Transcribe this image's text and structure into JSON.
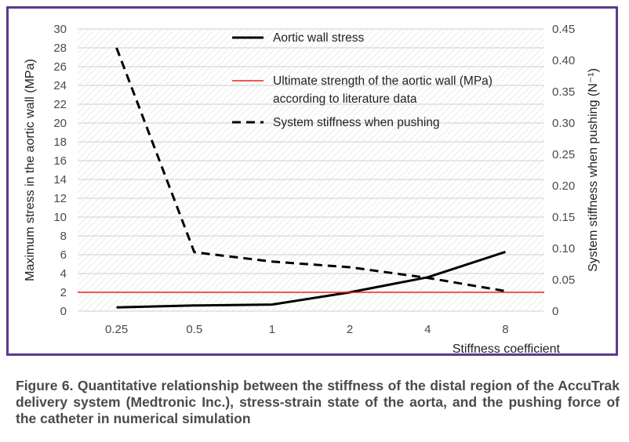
{
  "chart_data": {
    "type": "line",
    "categories": [
      "0.25",
      "0.5",
      "1",
      "2",
      "4",
      "8"
    ],
    "xlabel": "Stiffness coefficient",
    "ylabel": "Maximum stress in the aortic wall (MPa)",
    "y2label": "System stiffness when pushing (N⁻¹)",
    "ylim": [
      0,
      30
    ],
    "y2lim": [
      0,
      0.45
    ],
    "yticks": [
      "0",
      "2",
      "4",
      "6",
      "8",
      "10",
      "12",
      "14",
      "16",
      "18",
      "20",
      "22",
      "24",
      "26",
      "28",
      "30"
    ],
    "y2ticks": [
      "0",
      "0.05",
      "0.10",
      "0.15",
      "0.20",
      "0.25",
      "0.30",
      "0.35",
      "0.40",
      "0.45"
    ],
    "grid": "horizontal",
    "legend_position": "top-center",
    "series": [
      {
        "name": "Aortic wall stress",
        "axis": "left",
        "style": "solid",
        "color": "#000000",
        "values": [
          0.4,
          0.6,
          0.7,
          2.0,
          3.6,
          6.3
        ]
      },
      {
        "name": "Ultimate strength of the aortic wall (MPa) according to literature data",
        "axis": "left",
        "style": "solid",
        "color": "#e8231f",
        "values": [
          2,
          2,
          2,
          2,
          2,
          2
        ]
      },
      {
        "name": "System stiffness when pushing",
        "axis": "right",
        "style": "dashed",
        "color": "#000000",
        "values": [
          0.42,
          0.094,
          0.079,
          0.07,
          0.053,
          0.032
        ]
      }
    ],
    "legend_lines": [
      [
        "Aortic wall stress"
      ],
      [
        "Ultimate strength of the aortic wall (MPa)",
        "according to literature data"
      ],
      [
        "System stiffness when pushing"
      ]
    ]
  },
  "caption": "Figure 6. Quantitative relationship between the stiffness of the distal region of the AccuTrak delivery system (Medtronic Inc.), stress-strain state of the aorta, and the pushing force of the catheter in numerical simulation"
}
